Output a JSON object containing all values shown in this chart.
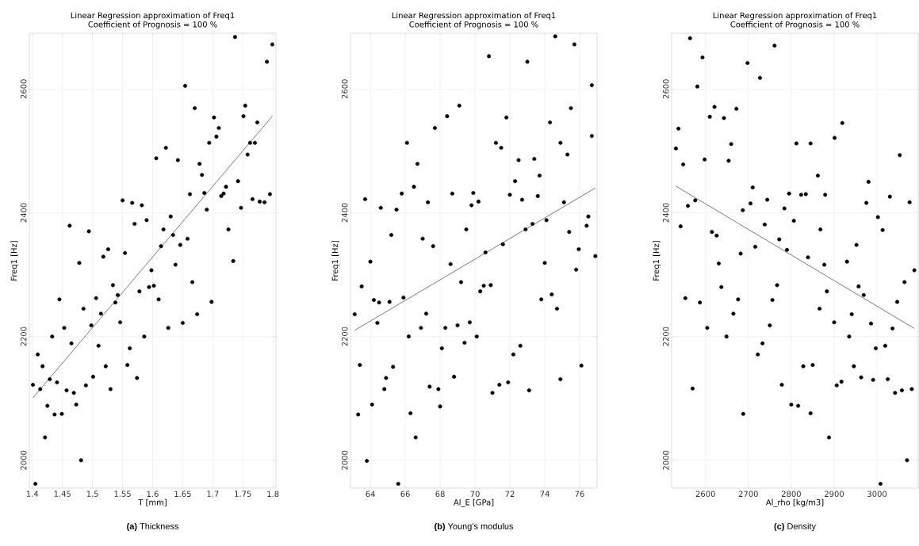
{
  "chart_data": [
    {
      "type": "scatter",
      "title": "Linear Regression approximation of Freq1",
      "subtitle": "Coefficient of Prognosis = 100 %",
      "xlabel": "T [mm]",
      "ylabel": "Freq1 [Hz]",
      "annotations": [
        "**(a)** Thickness"
      ],
      "grid": true,
      "xlim": [
        1.395,
        1.805
      ],
      "ylim": [
        1955,
        2690
      ],
      "xticks": [
        1.4,
        1.45,
        1.5,
        1.55,
        1.6,
        1.65,
        1.7,
        1.75,
        1.8
      ],
      "yticks": [
        2000,
        2200,
        2400,
        2600
      ],
      "series": [
        {
          "marker": "circle",
          "color": "#000000",
          "x": [
            1.462,
            1.494,
            1.518,
            1.526,
            1.55,
            1.554,
            1.566,
            1.57,
            1.582,
            1.59,
            1.606,
            1.614,
            1.618,
            1.622,
            1.63,
            1.634,
            1.642,
            1.646,
            1.654,
            1.658,
            1.662,
            1.67,
            1.678,
            1.682,
            1.686,
            1.69,
            1.694,
            1.702,
            1.706,
            1.71,
            1.714,
            1.718,
            1.722,
            1.726,
            1.734,
            1.742,
            1.737,
            1.747,
            1.751,
            1.754,
            1.758,
            1.762,
            1.766,
            1.77,
            1.774,
            1.778,
            1.786,
            1.79,
            1.795,
            1.799,
            1.401,
            1.405,
            1.409,
            1.413,
            1.417,
            1.421,
            1.425,
            1.429,
            1.433,
            1.437,
            1.441,
            1.445,
            1.449,
            1.453,
            1.457,
            1.465,
            1.469,
            1.473,
            1.478,
            1.481,
            1.485,
            1.489,
            1.498,
            1.501,
            1.506,
            1.51,
            1.514,
            1.522,
            1.53,
            1.534,
            1.538,
            1.542,
            1.546,
            1.558,
            1.562,
            1.574,
            1.578,
            1.586,
            1.594,
            1.598,
            1.602,
            1.61,
            1.626,
            1.638,
            1.65,
            1.666,
            1.674,
            1.698
          ],
          "values": [
            2379,
            2370,
            2329,
            2341,
            2420,
            2335,
            2416,
            2382,
            2412,
            2388,
            2488,
            2346,
            2373,
            2505,
            2394,
            2364,
            2485,
            2348,
            2605,
            2358,
            2430,
            2569,
            2479,
            2461,
            2432,
            2405,
            2513,
            2554,
            2523,
            2537,
            2427,
            2431,
            2442,
            2373,
            2322,
            2451,
            2684,
            2408,
            2556,
            2573,
            2494,
            2513,
            2422,
            2513,
            2546,
            2418,
            2417,
            2644,
            2430,
            2672,
            2122,
            1962,
            2171,
            2115,
            2152,
            2037,
            2088,
            2131,
            2200,
            2074,
            2126,
            2260,
            2075,
            2214,
            2113,
            2189,
            2109,
            2090,
            2319,
            2000,
            2245,
            2121,
            2218,
            2135,
            2262,
            2185,
            2237,
            2152,
            2115,
            2283,
            2255,
            2267,
            2223,
            2154,
            2181,
            2133,
            2273,
            2200,
            2280,
            2307,
            2282,
            2260,
            2214,
            2316,
            2222,
            2288,
            2236,
            2256
          ]
        },
        {
          "type": "line",
          "marker": "none",
          "color": "#404040",
          "x": [
            1.401,
            1.799
          ],
          "values": [
            2101,
            2556
          ]
        }
      ]
    },
    {
      "type": "scatter",
      "title": "Linear Regression approximation of Freq1",
      "subtitle": "Coefficient of Prognosis = 100 %",
      "xlabel": "Al_E [GPa]",
      "ylabel": "Freq1 [Hz]",
      "annotations": [
        "**(b)** Young’s modulus"
      ],
      "grid": true,
      "xlim": [
        62.86,
        77.0
      ],
      "ylim": [
        1955,
        2690
      ],
      "xticks": [
        64,
        66,
        68,
        70,
        72,
        74,
        76
      ],
      "yticks": [
        2000,
        2200,
        2400,
        2600
      ],
      "series": [
        {
          "marker": "circle",
          "color": "#000000",
          "x": [
            63.7,
            64.6,
            65.2,
            65.5,
            65.8,
            66.1,
            66.5,
            66.7,
            67.0,
            67.3,
            67.6,
            67.7,
            68.4,
            68.7,
            69.1,
            69.5,
            69.8,
            69.9,
            70.2,
            70.6,
            70.8,
            71.2,
            71.5,
            71.6,
            71.8,
            72.0,
            72.3,
            72.5,
            72.7,
            72.9,
            73.3,
            73.4,
            73.6,
            73.7,
            74.1,
            74.3,
            74.9,
            75.1,
            75.3,
            75.4,
            75.5,
            75.95,
            76.4,
            76.5,
            74.6,
            75.7,
            73.0,
            76.7,
            76.7,
            76.9,
            63.1,
            63.3,
            63.4,
            63.5,
            63.8,
            64.0,
            64.1,
            64.2,
            64.4,
            64.5,
            64.8,
            64.9,
            65.1,
            65.3,
            65.6,
            65.9,
            66.2,
            66.3,
            66.6,
            66.9,
            67.2,
            67.4,
            67.9,
            68.0,
            68.1,
            68.3,
            68.6,
            68.8,
            69.0,
            69.2,
            69.4,
            69.7,
            70.1,
            70.3,
            70.5,
            70.9,
            71.0,
            71.4,
            71.9,
            72.2,
            72.6,
            73.1,
            73.8,
            74.0,
            74.4,
            74.7,
            74.9,
            75.8,
            76.1
          ],
          "values": [
            2422,
            2408,
            2364,
            2405,
            2431,
            2513,
            2442,
            2479,
            2358,
            2417,
            2346,
            2537,
            2556,
            2431,
            2573,
            2373,
            2412,
            2432,
            2418,
            2336,
            2653,
            2513,
            2505,
            2349,
            2554,
            2429,
            2451,
            2485,
            2421,
            2373,
            2382,
            2487,
            2427,
            2460,
            2388,
            2546,
            2513,
            2417,
            2494,
            2369,
            2569,
            2341,
            2379,
            2394,
            2685,
            2672,
            2644,
            2606,
            2524,
            2330,
            2236,
            2074,
            2154,
            2281,
            1999,
            2321,
            2090,
            2259,
            2222,
            2255,
            2115,
            2133,
            2256,
            2151,
            1962,
            2263,
            2200,
            2076,
            2037,
            2214,
            2237,
            2119,
            2115,
            2087,
            2181,
            2214,
            2317,
            2135,
            2218,
            2288,
            2190,
            2223,
            2200,
            2273,
            2282,
            2283,
            2109,
            2122,
            2126,
            2171,
            2185,
            2113,
            2260,
            2319,
            2268,
            2245,
            2131,
            2308,
            2153
          ]
        },
        {
          "type": "line",
          "marker": "none",
          "color": "#404040",
          "x": [
            63.1,
            76.9
          ],
          "values": [
            2210,
            2440
          ]
        }
      ]
    },
    {
      "type": "scatter",
      "title": "Linear Regression approximation of Freq1",
      "subtitle": "Coefficient of Prognosis = 100 %",
      "xlabel": "Al_rho [kg/m3]",
      "ylabel": "Freq1 [Hz]",
      "annotations": [
        "**(c)** Density"
      ],
      "grid": true,
      "xlim": [
        2521,
        3096
      ],
      "ylim": [
        1955,
        2690
      ],
      "xticks": [
        2600,
        2700,
        2800,
        2900,
        3000
      ],
      "yticks": [
        2000,
        2200,
        2400,
        2600
      ],
      "series": [
        {
          "marker": "circle",
          "color": "#000000",
          "x": [
            2531,
            2537,
            2542,
            2548,
            2559,
            2564,
            2576,
            2581,
            2593,
            2598,
            2610,
            2615,
            2621,
            2626,
            2643,
            2654,
            2660,
            2672,
            2682,
            2687,
            2698,
            2705,
            2710,
            2716,
            2727,
            2738,
            2744,
            2761,
            2772,
            2784,
            2790,
            2795,
            2806,
            2812,
            2823,
            2834,
            2839,
            2845,
            2862,
            2868,
            2879,
            2901,
            2919,
            2930,
            2952,
            2975,
            2980,
            3002,
            3013,
            3030,
            3053,
            3076,
            2553,
            2570,
            2587,
            2604,
            2631,
            2637,
            2649,
            2665,
            2676,
            2688,
            2722,
            2733,
            2750,
            2756,
            2767,
            2778,
            2800,
            2816,
            2828,
            2845,
            2850,
            2866,
            2877,
            2883,
            2888,
            2900,
            2906,
            2917,
            2935,
            2941,
            2946,
            2957,
            2963,
            2969,
            2986,
            2991,
            2997,
            3008,
            3019,
            3025,
            3036,
            3042,
            3047,
            3058,
            3064,
            3070,
            3081,
            3087
          ],
          "values": [
            2504,
            2536,
            2378,
            2478,
            2411,
            2682,
            2420,
            2604,
            2651,
            2486,
            2555,
            2369,
            2571,
            2363,
            2553,
            2484,
            2511,
            2568,
            2334,
            2404,
            2642,
            2415,
            2441,
            2345,
            2618,
            2381,
            2421,
            2670,
            2357,
            2407,
            2340,
            2431,
            2387,
            2512,
            2429,
            2430,
            2328,
            2512,
            2460,
            2373,
            2429,
            2521,
            2545,
            2321,
            2348,
            2416,
            2450,
            2393,
            2372,
            2426,
            2493,
            2417,
            2262,
            2116,
            2255,
            2214,
            2318,
            2280,
            2200,
            2237,
            2260,
            2075,
            2171,
            2189,
            2218,
            2259,
            2283,
            2122,
            2090,
            2088,
            2152,
            2076,
            2154,
            2245,
            2316,
            2273,
            2037,
            2223,
            2121,
            2127,
            2200,
            2236,
            2152,
            2281,
            2134,
            2267,
            2221,
            2130,
            2181,
            1962,
            2185,
            2131,
            2213,
            2109,
            2256,
            2113,
            2288,
            2000,
            2115,
            2307
          ]
        },
        {
          "type": "line",
          "marker": "none",
          "color": "#404040",
          "x": [
            2531,
            3087
          ],
          "values": [
            2443,
            2213
          ]
        }
      ]
    }
  ]
}
